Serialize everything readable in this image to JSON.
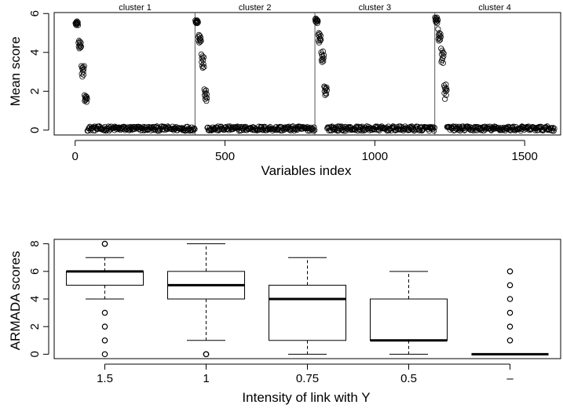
{
  "chart_data": [
    {
      "type": "scatter",
      "title": "",
      "xlabel": "Variables index",
      "ylabel": "Mean score",
      "xlim": [
        -70,
        1620
      ],
      "ylim": [
        -0.25,
        6.05
      ],
      "x_ticks": [
        0,
        500,
        1000,
        1500
      ],
      "y_ticks": [
        0,
        2,
        4,
        6
      ],
      "grid": false,
      "vlines": [
        400,
        800,
        1200
      ],
      "cluster_labels": [
        {
          "label": "cluster 1",
          "x_center": 200
        },
        {
          "label": "cluster 2",
          "x_center": 600
        },
        {
          "label": "cluster 3",
          "x_center": 1000
        },
        {
          "label": "cluster 4",
          "x_center": 1400
        }
      ],
      "point_groups": [
        {
          "x_start": 1,
          "x_end": 10,
          "values": [
            5.5,
            5.45,
            5.55,
            5.4,
            5.5,
            5.6,
            5.45,
            5.5,
            5.55,
            5.4
          ]
        },
        {
          "x_start": 11,
          "x_end": 20,
          "values": [
            4.5,
            4.3,
            4.6,
            4.2,
            4.4,
            4.55,
            4.35,
            4.25,
            4.5,
            4.3
          ]
        },
        {
          "x_start": 21,
          "x_end": 30,
          "values": [
            3.3,
            2.9,
            3.2,
            2.75,
            3.1,
            3.25,
            3.0,
            2.85,
            3.15,
            3.3
          ]
        },
        {
          "x_start": 31,
          "x_end": 40,
          "values": [
            1.8,
            1.5,
            1.7,
            1.6,
            1.55,
            1.75,
            1.65,
            1.45,
            1.7,
            1.6
          ]
        },
        {
          "x_start": 401,
          "x_end": 410,
          "values": [
            5.65,
            5.55,
            5.6,
            5.5,
            5.6,
            5.55,
            5.65,
            5.5,
            5.6,
            5.55
          ]
        },
        {
          "x_start": 411,
          "x_end": 420,
          "values": [
            4.8,
            4.6,
            4.9,
            4.5,
            4.7,
            4.85,
            4.65,
            4.55,
            4.75,
            4.6
          ]
        },
        {
          "x_start": 421,
          "x_end": 430,
          "values": [
            3.9,
            3.5,
            3.7,
            3.3,
            3.8,
            3.2,
            3.6,
            3.4,
            3.75,
            3.25
          ]
        },
        {
          "x_start": 431,
          "x_end": 440,
          "values": [
            2.1,
            1.8,
            2.0,
            1.6,
            1.9,
            1.7,
            2.05,
            1.5,
            1.85,
            1.65
          ]
        },
        {
          "x_start": 801,
          "x_end": 810,
          "values": [
            5.7,
            5.6,
            5.75,
            5.55,
            5.65,
            5.7,
            5.6,
            5.5,
            5.65,
            5.6
          ]
        },
        {
          "x_start": 811,
          "x_end": 820,
          "values": [
            4.9,
            4.6,
            5.0,
            4.5,
            4.8,
            4.95,
            4.7,
            4.6,
            4.85,
            4.65
          ]
        },
        {
          "x_start": 821,
          "x_end": 830,
          "values": [
            4.0,
            3.6,
            3.9,
            3.5,
            3.8,
            3.65,
            4.05,
            3.55,
            3.7,
            3.85
          ]
        },
        {
          "x_start": 831,
          "x_end": 840,
          "values": [
            2.25,
            2.0,
            2.2,
            1.8,
            2.1,
            1.9,
            2.15,
            1.85,
            2.2,
            2.05
          ]
        },
        {
          "x_start": 1201,
          "x_end": 1210,
          "values": [
            5.8,
            5.65,
            5.75,
            5.55,
            5.7,
            5.6,
            5.8,
            5.5,
            5.7,
            5.65
          ]
        },
        {
          "x_start": 1211,
          "x_end": 1220,
          "values": [
            5.2,
            4.7,
            4.9,
            4.6,
            5.0,
            4.75,
            4.85,
            4.65,
            4.95,
            4.8
          ]
        },
        {
          "x_start": 1221,
          "x_end": 1230,
          "values": [
            4.2,
            3.5,
            3.9,
            3.6,
            4.1,
            3.7,
            4.0,
            3.45,
            3.8,
            3.95
          ]
        },
        {
          "x_start": 1231,
          "x_end": 1240,
          "values": [
            2.3,
            1.9,
            2.2,
            1.6,
            2.1,
            2.0,
            2.35,
            1.8,
            2.15,
            2.05
          ]
        }
      ],
      "noise": {
        "level": 0.08,
        "range": 0.12,
        "x_ranges": [
          [
            41,
            400
          ],
          [
            441,
            800
          ],
          [
            841,
            1200
          ],
          [
            1241,
            1600
          ]
        ]
      }
    },
    {
      "type": "box",
      "title": "",
      "xlabel": "Intensity of link with Y",
      "ylabel": "ARMADA scores",
      "ylim": [
        -0.32,
        8.32
      ],
      "y_ticks": [
        0,
        2,
        4,
        6,
        8
      ],
      "grid": false,
      "categories": [
        "1.5",
        "1",
        "0.75",
        "0.5",
        "–"
      ],
      "boxes": [
        {
          "category": "1.5",
          "whisker_low": 4,
          "q1": 5,
          "median": 6,
          "q3": 6,
          "whisker_high": 7,
          "outliers": [
            8,
            8,
            3,
            2,
            1,
            0
          ]
        },
        {
          "category": "1",
          "whisker_low": 1,
          "q1": 4,
          "median": 5,
          "q3": 6,
          "whisker_high": 8,
          "outliers": [
            0,
            0
          ]
        },
        {
          "category": "0.75",
          "whisker_low": 0,
          "q1": 1,
          "median": 4,
          "q3": 5,
          "whisker_high": 7,
          "outliers": []
        },
        {
          "category": "0.5",
          "whisker_low": 0,
          "q1": 1,
          "median": 1,
          "q3": 4,
          "whisker_high": 6,
          "outliers": []
        },
        {
          "category": "–",
          "whisker_low": 0,
          "q1": 0,
          "median": 0,
          "q3": 0,
          "whisker_high": 0,
          "outliers": [
            1,
            2,
            3,
            4,
            5,
            6
          ]
        }
      ]
    }
  ]
}
